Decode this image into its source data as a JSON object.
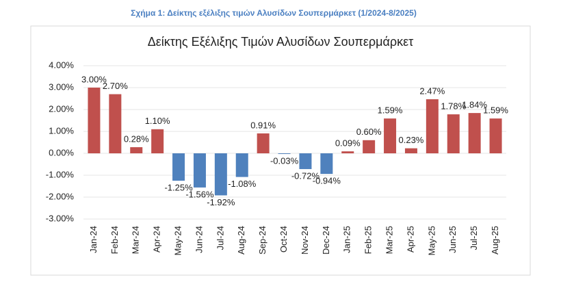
{
  "caption": "Σχήμα 1: Δείκτης εξέλιξης τιμών Αλυσίδων Σουπερμάρκετ (1/2024-8/2025)",
  "chart_data": {
    "type": "bar",
    "title": "Δείκτης Εξέλιξης Τιμών Αλυσίδων Σουπερμάρκετ",
    "categories": [
      "Jan-24",
      "Feb-24",
      "Mar-24",
      "Apr-24",
      "May-24",
      "Jun-24",
      "Jul-24",
      "Aug-24",
      "Sep-24",
      "Oct-24",
      "Nov-24",
      "Dec-24",
      "Jan-25",
      "Feb-25",
      "Mar-25",
      "Apr-25",
      "May-25",
      "Jun-25",
      "Jul-25",
      "Aug-25"
    ],
    "values": [
      3.0,
      2.7,
      0.28,
      1.1,
      -1.25,
      -1.56,
      -1.92,
      -1.08,
      0.91,
      -0.03,
      -0.72,
      -0.94,
      0.09,
      0.6,
      1.59,
      0.23,
      2.47,
      1.78,
      1.84,
      1.59
    ],
    "value_labels": [
      "3.00%",
      "2.70%",
      "0.28%",
      "1.10%",
      "-1.25%",
      "-1.56%",
      "-1.92%",
      "-1.08%",
      "0.91%",
      "-0.03%",
      "-0.72%",
      "-0.94%",
      "0.09%",
      "0.60%",
      "1.59%",
      "0.23%",
      "2.47%",
      "1.78%",
      "1.84%",
      "1.59%"
    ],
    "positive_color": "#c0504d",
    "negative_color": "#4f81bd",
    "ylim": [
      -3,
      4
    ],
    "yticks": [
      {
        "value": -3,
        "label": "-3.00%"
      },
      {
        "value": -2,
        "label": "-2.00%"
      },
      {
        "value": -1,
        "label": "-1.00%"
      },
      {
        "value": 0,
        "label": "0.00%"
      },
      {
        "value": 1,
        "label": "1.00%"
      },
      {
        "value": 2,
        "label": "2.00%"
      },
      {
        "value": 3,
        "label": "3.00%"
      },
      {
        "value": 4,
        "label": "4.00%"
      }
    ],
    "grid": true
  }
}
